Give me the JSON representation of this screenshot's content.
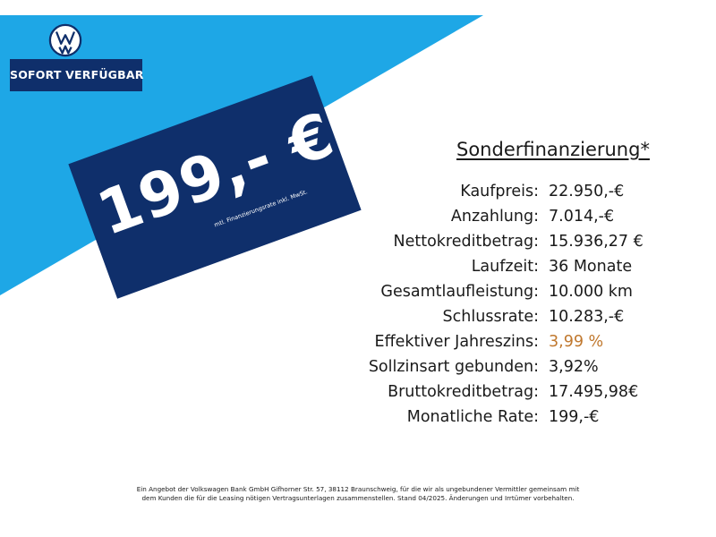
{
  "colors": {
    "accent_light_blue": "#1ea7e6",
    "dark_navy": "#0f2f6b",
    "highlight_orange": "#c0782e",
    "text": "#1a1a1a"
  },
  "brand": {
    "logo_icon": "vw-logo-icon"
  },
  "badge": {
    "label": "SOFORT VERFÜGBAR"
  },
  "price_tag": {
    "price": "199,- €",
    "note": "mtl. Finanzierungsrate inkl. MwSt."
  },
  "finance": {
    "title": "Sonderfinanzierung*",
    "rows": [
      {
        "label": "Kaufpreis:",
        "value": "22.950,-€"
      },
      {
        "label": "Anzahlung:",
        "value": "7.014,-€"
      },
      {
        "label": "Nettokreditbetrag:",
        "value": "15.936,27 €"
      },
      {
        "label": "Laufzeit:",
        "value": "36 Monate"
      },
      {
        "label": "Gesamtlaufleistung:",
        "value": "10.000 km"
      },
      {
        "label": "Schlussrate:",
        "value": "10.283,-€"
      },
      {
        "label": "Effektiver Jahreszins:",
        "value": "3,99 %"
      },
      {
        "label": "Sollzinsart gebunden:",
        "value": "3,92%"
      },
      {
        "label": "Bruttokreditbetrag:",
        "value": "17.495,98€"
      },
      {
        "label": "Monatliche Rate:",
        "value": "199,-€"
      }
    ]
  },
  "footer": {
    "line1": "Ein Angebot der Volkswagen Bank GmbH Gifhorner Str. 57, 38112 Braunschweig, für die wir als ungebundener Vermittler gemeinsam mit",
    "line2": "dem Kunden die für die Leasing nötigen Vertragsunterlagen zusammenstellen. Stand 04/2025. Änderungen und Irrtümer vorbehalten."
  }
}
